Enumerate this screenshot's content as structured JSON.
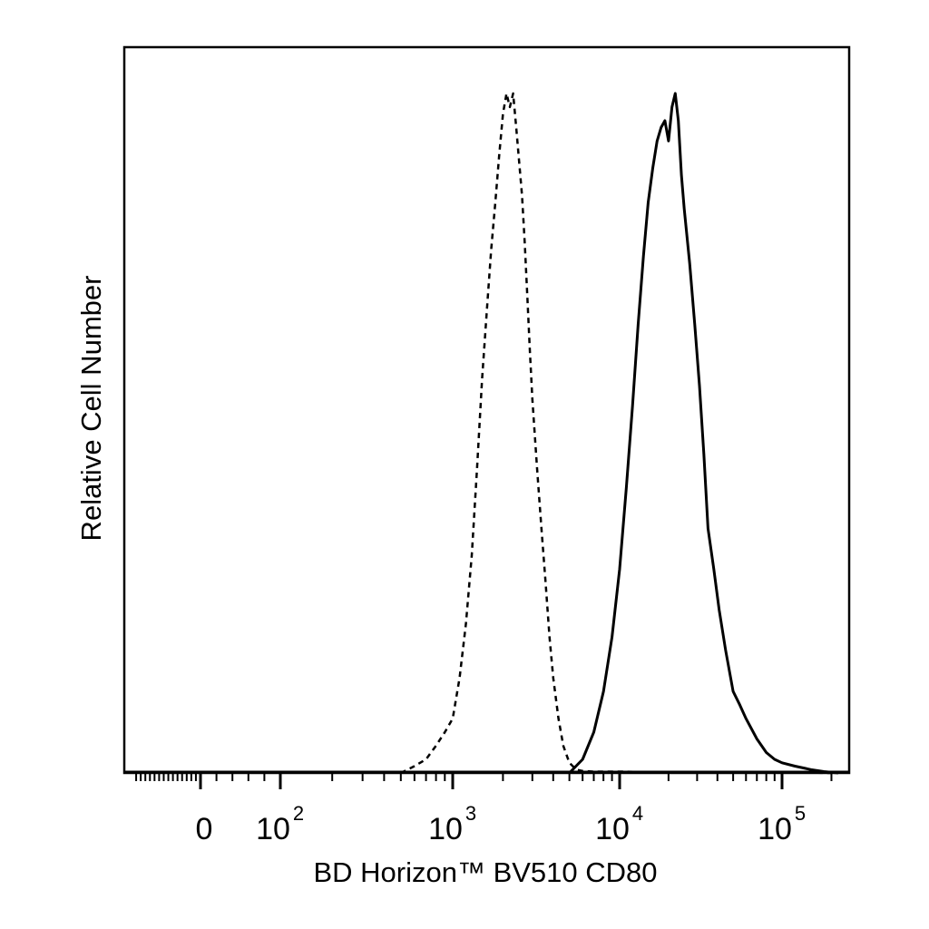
{
  "chart_data": {
    "type": "line",
    "title": "",
    "xlabel": "BD Horizon™ BV510 CD80",
    "ylabel": "Relative Cell Number",
    "x_scale": "biexponential (linear near 0, logarithmic above)",
    "xlim": [
      -300,
      250000
    ],
    "ylim": [
      0,
      1.0
    ],
    "x_ticks": [
      {
        "value": 0,
        "base": "0",
        "exp": ""
      },
      {
        "value": 100,
        "base": "10",
        "exp": "2"
      },
      {
        "value": 1000,
        "base": "10",
        "exp": "3"
      },
      {
        "value": 10000,
        "base": "10",
        "exp": "4"
      },
      {
        "value": 100000,
        "base": "10",
        "exp": "5"
      }
    ],
    "grid": false,
    "legend": "none",
    "series": [
      {
        "style": "dashed",
        "color": "#000000",
        "x": [
          500,
          600,
          700,
          800,
          900,
          1000,
          1100,
          1200,
          1300,
          1400,
          1500,
          1600,
          1700,
          1800,
          1900,
          2000,
          2100,
          2200,
          2300,
          2400,
          2500,
          2600,
          2700,
          2800,
          2900,
          3000,
          3200,
          3400,
          3600,
          3800,
          4000,
          4300,
          4600,
          5000,
          5500,
          6000,
          7000,
          8000,
          10000,
          20000,
          50000,
          100000,
          200000
        ],
        "y": [
          0.0,
          0.01,
          0.02,
          0.04,
          0.06,
          0.08,
          0.14,
          0.22,
          0.32,
          0.45,
          0.58,
          0.68,
          0.77,
          0.84,
          0.91,
          0.97,
          1.0,
          0.98,
          1.0,
          0.95,
          0.9,
          0.85,
          0.78,
          0.7,
          0.62,
          0.55,
          0.45,
          0.36,
          0.28,
          0.2,
          0.14,
          0.08,
          0.04,
          0.015,
          0.005,
          0.003,
          0.002,
          0.002,
          0.002,
          0.001,
          0.001,
          0.001,
          0.0
        ]
      },
      {
        "style": "solid",
        "color": "#000000",
        "x": [
          5000,
          6000,
          7000,
          8000,
          9000,
          10000,
          11000,
          12000,
          13000,
          14000,
          15000,
          16000,
          17000,
          18000,
          19000,
          20000,
          21000,
          22000,
          23000,
          24000,
          25000,
          27000,
          29000,
          31000,
          33000,
          35000,
          38000,
          41000,
          45000,
          50000,
          55000,
          60000,
          70000,
          80000,
          90000,
          100000,
          120000,
          150000,
          180000,
          220000
        ],
        "y": [
          0.0,
          0.02,
          0.06,
          0.12,
          0.2,
          0.3,
          0.42,
          0.54,
          0.66,
          0.76,
          0.84,
          0.89,
          0.93,
          0.95,
          0.96,
          0.93,
          0.98,
          1.0,
          0.96,
          0.88,
          0.83,
          0.75,
          0.66,
          0.57,
          0.47,
          0.36,
          0.3,
          0.24,
          0.18,
          0.12,
          0.1,
          0.08,
          0.05,
          0.03,
          0.02,
          0.015,
          0.01,
          0.005,
          0.002,
          0.0
        ]
      }
    ]
  }
}
